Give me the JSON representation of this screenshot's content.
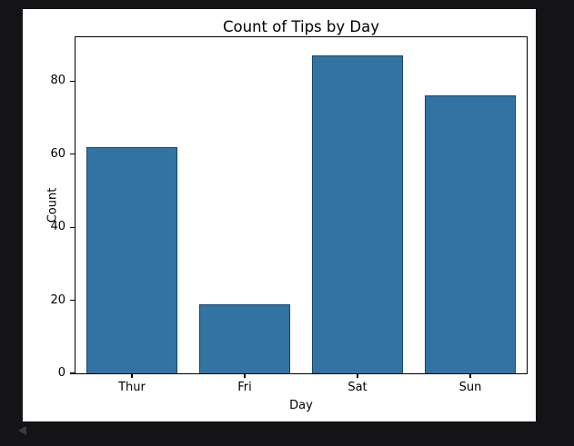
{
  "window": {
    "background": "#141416"
  },
  "figure": {
    "background": "#ffffff"
  },
  "icons": {
    "collapse_arrow": "left-triangle"
  },
  "chart_data": {
    "type": "bar",
    "title": "Count of Tips by Day",
    "xlabel": "Day",
    "ylabel": "Count",
    "categories": [
      "Thur",
      "Fri",
      "Sat",
      "Sun"
    ],
    "values": [
      62,
      19,
      87,
      76
    ],
    "yticks": [
      0,
      20,
      40,
      60,
      80
    ],
    "ylim": [
      0,
      92
    ],
    "grid": false,
    "legend": "none",
    "bar_color": "#3273a1",
    "bar_edge_color": "#17476e",
    "axis_color": "#000000",
    "text_color": "#000000"
  }
}
